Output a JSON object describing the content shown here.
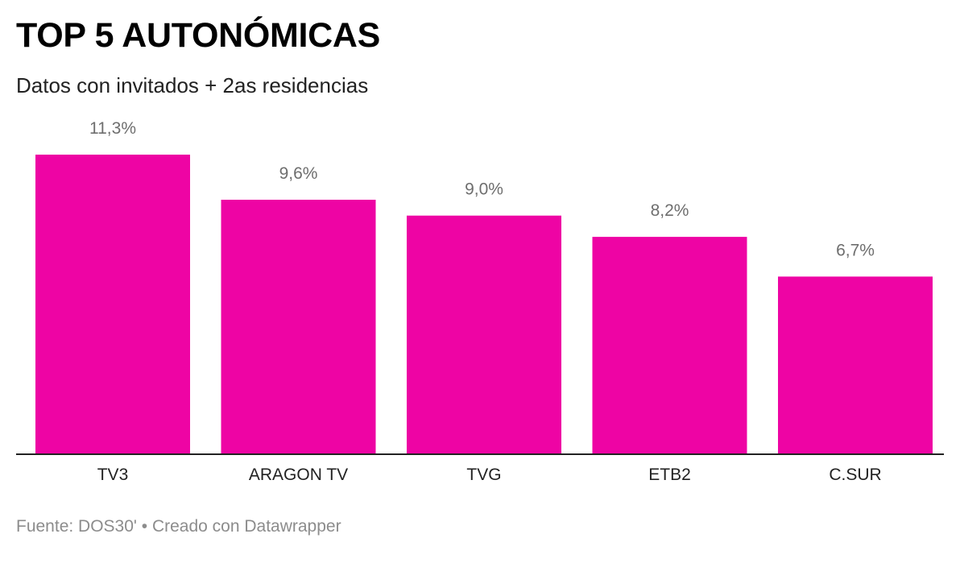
{
  "header": {
    "title": "TOP 5 AUTONÓMICAS",
    "subtitle": "Datos con invitados + 2as residencias"
  },
  "footer": {
    "source_label": "Fuente: DOS30' • Creado con Datawrapper"
  },
  "colors": {
    "bar": "#ee04a4",
    "value_label": "#6e6e6e",
    "category_label": "#222222",
    "baseline": "#222222"
  },
  "chart_data": {
    "type": "bar",
    "title": "TOP 5 AUTONÓMICAS",
    "subtitle": "Datos con invitados + 2as residencias",
    "categories": [
      "TV3",
      "ARAGON TV",
      "TVG",
      "ETB2",
      "C.SUR"
    ],
    "values": [
      11.3,
      9.6,
      9.0,
      8.2,
      6.7
    ],
    "value_labels": [
      "11,3%",
      "9,6%",
      "9,0%",
      "8,2%",
      "6,7%"
    ],
    "unit": "%",
    "ylim": [
      0,
      11.3
    ],
    "grid": false,
    "legend": "none"
  }
}
